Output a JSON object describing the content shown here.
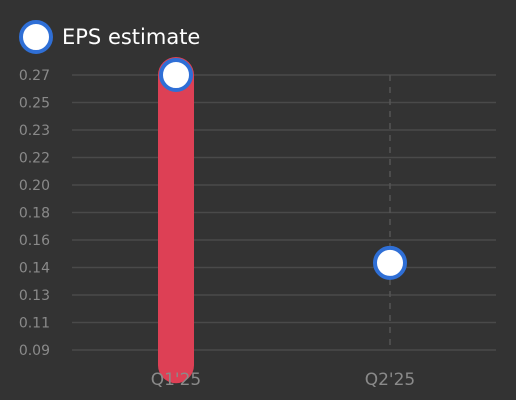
{
  "chart_data": {
    "type": "scatter",
    "title": "",
    "xlabel": "",
    "ylabel": "",
    "categories": [
      "Q1'25",
      "Q2'25"
    ],
    "y_ticks": [
      "0.27",
      "0.25",
      "0.23",
      "0.22",
      "0.20",
      "0.18",
      "0.16",
      "0.14",
      "0.13",
      "0.11",
      "0.09"
    ],
    "ylim": [
      0.09,
      0.27
    ],
    "legend": {
      "position": "top-left",
      "label": "EPS estimate"
    },
    "grid": true,
    "series": [
      {
        "name": "EPS estimate",
        "values": [
          0.27,
          0.147
        ],
        "marker_fill": "#ffffff",
        "marker_stroke": "#2f6fd6"
      }
    ],
    "ranges": [
      {
        "category": "Q1'25",
        "low": 0.08,
        "high": 0.27,
        "color": "#dd4055"
      }
    ],
    "colors": {
      "background": "#333333",
      "grid": "#4a4a4a",
      "axis_text": "#8a8a8a",
      "legend_text": "#ffffff",
      "dashed_guide": "#555555"
    }
  }
}
